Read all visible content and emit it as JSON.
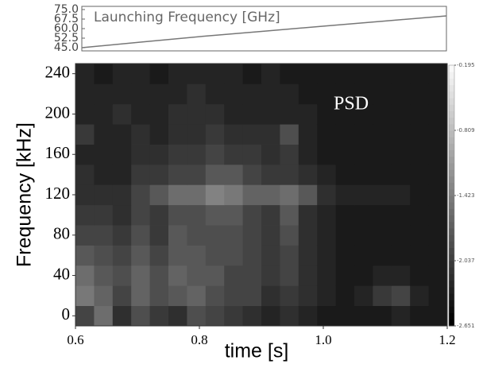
{
  "chart_data": [
    {
      "type": "line",
      "annotation": "Launching Frequency [GHz]",
      "x": [
        0.6,
        0.7,
        0.8,
        0.9,
        1.0,
        1.1,
        1.2
      ],
      "series": [
        {
          "color": "#777777",
          "values": [
            45,
            49.5,
            54,
            58,
            62,
            66,
            70
          ]
        }
      ],
      "xlim": [
        0.6,
        1.2
      ],
      "ylim": [
        45,
        75
      ],
      "yticks": [
        {
          "value": 45,
          "label": "45.0"
        },
        {
          "value": 52.5,
          "label": "52.5"
        },
        {
          "value": 60,
          "label": "60.0"
        },
        {
          "value": 67.5,
          "label": "67.5"
        },
        {
          "value": 75,
          "label": "75.0"
        }
      ]
    },
    {
      "type": "heatmap",
      "annotation": "PSD",
      "xlabel": "time [s]",
      "ylabel": "Frequency [kHz]",
      "xlim": [
        0.6,
        1.2
      ],
      "ylim": [
        -10,
        250
      ],
      "xticks": [
        0.6,
        0.8,
        {
          "value": 1.0,
          "label": "1.0"
        },
        1.2
      ],
      "yticks": [
        0,
        40,
        80,
        120,
        160,
        200,
        240
      ],
      "clim": [
        -2.651,
        -0.195
      ],
      "cticks": [
        -2.651,
        -2.037,
        -1.423,
        -0.809,
        -0.195
      ],
      "values": [
        [
          -2.0,
          -1.6,
          -2.2,
          -1.9,
          -2.1,
          -2.2,
          -1.9,
          -2.0,
          -2.1,
          -2.2,
          -2.3,
          -2.2,
          -2.3,
          -2.4,
          -2.4,
          -2.4,
          -2.4,
          -2.3,
          -2.4,
          -2.4
        ],
        [
          -1.5,
          -1.7,
          -2.0,
          -1.7,
          -1.9,
          -1.8,
          -1.7,
          -1.9,
          -2.0,
          -2.0,
          -2.2,
          -2.1,
          -2.2,
          -2.3,
          -2.4,
          -2.3,
          -2.1,
          -2.0,
          -2.3,
          -2.4
        ],
        [
          -1.6,
          -1.8,
          -1.9,
          -1.7,
          -1.9,
          -1.7,
          -1.8,
          -1.8,
          -2.0,
          -2.0,
          -2.1,
          -2.0,
          -2.2,
          -2.3,
          -2.4,
          -2.4,
          -2.3,
          -2.3,
          -2.4,
          -2.4
        ],
        [
          -1.8,
          -1.9,
          -2.0,
          -1.8,
          -2.0,
          -1.8,
          -1.8,
          -1.9,
          -1.9,
          -2.0,
          -2.1,
          -2.0,
          -2.2,
          -2.3,
          -2.4,
          -2.4,
          -2.4,
          -2.4,
          -2.4,
          -2.4
        ],
        [
          -2.0,
          -2.0,
          -2.1,
          -1.9,
          -2.1,
          -1.8,
          -1.9,
          -1.9,
          -1.9,
          -2.0,
          -2.1,
          -1.9,
          -2.2,
          -2.3,
          -2.4,
          -2.4,
          -2.4,
          -2.4,
          -2.4,
          -2.4
        ],
        [
          -2.1,
          -2.1,
          -2.2,
          -2.0,
          -2.1,
          -1.9,
          -1.9,
          -1.8,
          -1.8,
          -2.0,
          -2.1,
          -1.8,
          -2.2,
          -2.3,
          -2.4,
          -2.4,
          -2.4,
          -2.4,
          -2.4,
          -2.4
        ],
        [
          -2.2,
          -2.2,
          -2.2,
          -2.0,
          -1.8,
          -1.6,
          -1.6,
          -1.4,
          -1.5,
          -1.7,
          -1.7,
          -1.6,
          -1.8,
          -2.2,
          -2.3,
          -2.3,
          -2.3,
          -2.3,
          -2.4,
          -2.4
        ],
        [
          -2.2,
          -2.3,
          -2.3,
          -2.1,
          -2.1,
          -2.0,
          -2.0,
          -1.8,
          -1.8,
          -2.0,
          -2.1,
          -2.1,
          -2.2,
          -2.3,
          -2.4,
          -2.4,
          -2.4,
          -2.4,
          -2.4,
          -2.4
        ],
        [
          -2.3,
          -2.3,
          -2.3,
          -2.2,
          -2.2,
          -2.1,
          -2.1,
          -2.0,
          -2.1,
          -2.1,
          -2.2,
          -2.1,
          -2.3,
          -2.4,
          -2.4,
          -2.4,
          -2.4,
          -2.4,
          -2.4,
          -2.4
        ],
        [
          -2.1,
          -2.3,
          -2.3,
          -2.2,
          -2.3,
          -2.2,
          -2.2,
          -2.1,
          -2.2,
          -2.2,
          -2.2,
          -1.9,
          -2.3,
          -2.4,
          -2.4,
          -2.4,
          -2.4,
          -2.4,
          -2.4,
          -2.4
        ],
        [
          -2.3,
          -2.3,
          -2.2,
          -2.3,
          -2.3,
          -2.2,
          -2.2,
          -2.2,
          -2.3,
          -2.3,
          -2.3,
          -2.3,
          -2.3,
          -2.4,
          -2.4,
          -2.4,
          -2.4,
          -2.4,
          -2.4,
          -2.4
        ],
        [
          -2.3,
          -2.3,
          -2.3,
          -2.3,
          -2.3,
          -2.3,
          -2.2,
          -2.3,
          -2.3,
          -2.3,
          -2.3,
          -2.3,
          -2.4,
          -2.4,
          -2.4,
          -2.4,
          -2.4,
          -2.4,
          -2.4,
          -2.4
        ],
        [
          -2.3,
          -2.4,
          -2.3,
          -2.3,
          -2.4,
          -2.3,
          -2.3,
          -2.3,
          -2.3,
          -2.4,
          -2.3,
          -2.4,
          -2.4,
          -2.4,
          -2.4,
          -2.4,
          -2.4,
          -2.4,
          -2.4,
          -2.4
        ]
      ]
    }
  ]
}
